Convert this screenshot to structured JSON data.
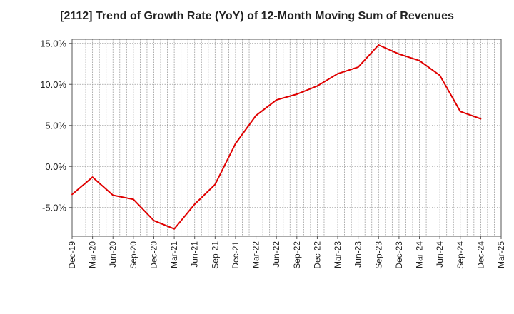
{
  "chart_data": {
    "type": "line",
    "title": "[2112]  Trend of Growth Rate (YoY) of 12-Month Moving Sum of Revenues",
    "xlabel": "",
    "ylabel": "",
    "ylim": [
      -8.5,
      15.5
    ],
    "y_ticks": [
      "15.0%",
      "10.0%",
      "5.0%",
      "0.0%",
      "-5.0%"
    ],
    "y_tick_values": [
      15,
      10,
      5,
      0,
      -5
    ],
    "x_tick_labels": [
      "Dec-19",
      "Mar-20",
      "Jun-20",
      "Sep-20",
      "Dec-20",
      "Mar-21",
      "Jun-21",
      "Sep-21",
      "Dec-21",
      "Mar-22",
      "Jun-22",
      "Sep-22",
      "Dec-22",
      "Mar-23",
      "Jun-23",
      "Sep-23",
      "Dec-23",
      "Mar-24",
      "Jun-24",
      "Sep-24",
      "Dec-24",
      "Mar-25"
    ],
    "grid": true,
    "series": [
      {
        "color": "#e00000",
        "points": [
          {
            "x": "Dec-19",
            "y": -3.4
          },
          {
            "x": "Mar-20",
            "y": -1.3
          },
          {
            "x": "Jun-20",
            "y": -3.5
          },
          {
            "x": "Sep-20",
            "y": -4.0
          },
          {
            "x": "Dec-20",
            "y": -6.6
          },
          {
            "x": "Mar-21",
            "y": -7.6
          },
          {
            "x": "Jun-21",
            "y": -4.6
          },
          {
            "x": "Sep-21",
            "y": -2.2
          },
          {
            "x": "Dec-21",
            "y": 2.8
          },
          {
            "x": "Mar-22",
            "y": 6.2
          },
          {
            "x": "Jun-22",
            "y": 8.1
          },
          {
            "x": "Sep-22",
            "y": 8.8
          },
          {
            "x": "Dec-22",
            "y": 9.8
          },
          {
            "x": "Mar-23",
            "y": 11.3
          },
          {
            "x": "Jun-23",
            "y": 12.1
          },
          {
            "x": "Sep-23",
            "y": 14.8
          },
          {
            "x": "Dec-23",
            "y": 13.7
          },
          {
            "x": "Mar-24",
            "y": 12.9
          },
          {
            "x": "Jun-24",
            "y": 11.1
          },
          {
            "x": "Sep-24",
            "y": 6.7
          },
          {
            "x": "Dec-24",
            "y": 5.8
          }
        ]
      }
    ]
  }
}
